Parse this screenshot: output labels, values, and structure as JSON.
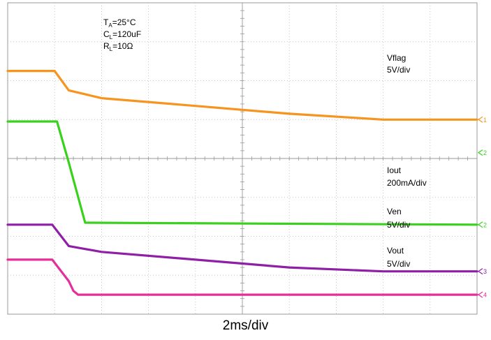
{
  "chart_data": {
    "type": "line",
    "title": "",
    "xlabel": "2ms/div",
    "ylabel": "",
    "time_per_div_ms": 2,
    "divisions_x": 10,
    "divisions_y": 8,
    "grid": true,
    "conditions": [
      {
        "base": "T",
        "sub": "A",
        "rest": "=25°C"
      },
      {
        "base": "C",
        "sub": "L",
        "rest": "=120uF"
      },
      {
        "base": "R",
        "sub": "L",
        "rest": "=10Ω"
      }
    ],
    "series": [
      {
        "name": "Vflag",
        "scale": "5V/div",
        "channel": "1",
        "color": "#f7941d",
        "x_div": [
          0,
          1.0,
          1.3,
          2.0,
          4,
          6,
          8,
          10
        ],
        "y_div": [
          6.25,
          6.25,
          5.75,
          5.55,
          5.35,
          5.15,
          5.0,
          5.0
        ]
      },
      {
        "name": "Iout",
        "scale": "200mA/div",
        "channel": "2",
        "color": "#39d11d",
        "x_div": [
          0,
          1.05,
          1.3,
          1.65,
          10
        ],
        "y_div": [
          4.95,
          4.95,
          3.9,
          2.35,
          2.3
        ]
      },
      {
        "name": "Ven",
        "scale": "5V/div",
        "channel": "3",
        "color": "#8e1fa6",
        "x_div": [
          0,
          0.95,
          1.3,
          2.0,
          4,
          6,
          8,
          10
        ],
        "y_div": [
          2.3,
          2.3,
          1.75,
          1.6,
          1.4,
          1.2,
          1.1,
          1.1
        ]
      },
      {
        "name": "Vout",
        "scale": "5V/div",
        "channel": "4",
        "color": "#e62e9a",
        "x_div": [
          0,
          0.95,
          1.3,
          1.4,
          1.5,
          10
        ],
        "y_div": [
          1.4,
          1.4,
          0.85,
          0.6,
          0.5,
          0.5
        ]
      }
    ],
    "side_markers": [
      {
        "label": "1",
        "color": "#f7941d"
      },
      {
        "label": "2",
        "color": "#39d11d"
      },
      {
        "label": "3",
        "color": "#8e1fa6"
      },
      {
        "label": "4",
        "color": "#e62e9a"
      }
    ]
  }
}
